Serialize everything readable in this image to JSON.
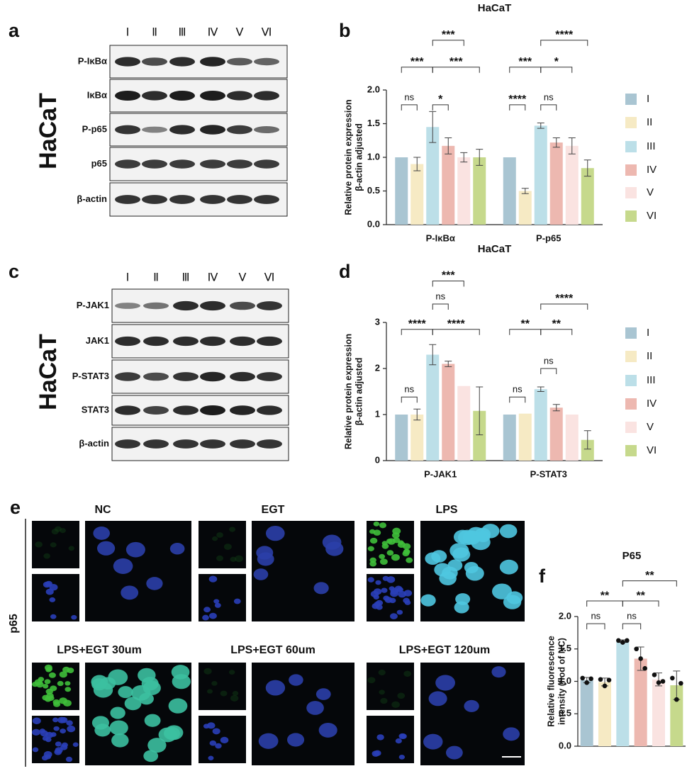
{
  "panel_labels": [
    "a",
    "b",
    "c",
    "d",
    "e",
    "f"
  ],
  "blots": [
    {
      "cell_line": "HaCaT",
      "lanes": [
        "Ⅰ",
        "Ⅱ",
        "Ⅲ",
        "Ⅳ",
        "Ⅴ",
        "Ⅵ"
      ],
      "rows": [
        "P-IκBα",
        "IκBα",
        "P-p65",
        "p65",
        "β-actin"
      ]
    },
    {
      "cell_line": "HaCaT",
      "lanes": [
        "Ⅰ",
        "Ⅱ",
        "Ⅲ",
        "Ⅳ",
        "Ⅴ",
        "Ⅵ"
      ],
      "rows": [
        "P-JAK1",
        "JAK1",
        "P-STAT3",
        "STAT3",
        "β-actin"
      ]
    }
  ],
  "imaging": {
    "protein": "p65",
    "conditions": [
      "NC",
      "EGT",
      "LPS",
      "LPS+EGT 30um",
      "LPS+EGT 60um",
      "LPS+EGT 120um"
    ]
  },
  "chart_data": [
    {
      "type": "bar",
      "title": "HaCaT",
      "ylabel": [
        "Relative protein expression",
        "β-actin adjusted"
      ],
      "categories": [
        "P-IκBα",
        "P-p65"
      ],
      "ylim": [
        0,
        2
      ],
      "yticks": [
        {
          "value": 0,
          "label": "0.0"
        },
        {
          "value": 0.5,
          "label": "0.5"
        },
        {
          "value": 1,
          "label": "1.0"
        },
        {
          "value": 1.5,
          "label": "1.5"
        },
        {
          "value": 2,
          "label": "2.0"
        }
      ],
      "series": [
        {
          "name": "I",
          "color": "#a9c5d2",
          "values": [
            1.0,
            1.0
          ],
          "errors": [
            null,
            null
          ]
        },
        {
          "name": "II",
          "color": "#f6eac4",
          "values": [
            0.9,
            0.5
          ],
          "errors": [
            0.1,
            0.04
          ]
        },
        {
          "name": "III",
          "color": "#bcdfe8",
          "values": [
            1.45,
            1.47
          ],
          "errors": [
            0.23,
            0.04
          ]
        },
        {
          "name": "IV",
          "color": "#edb8b0",
          "values": [
            1.17,
            1.22
          ],
          "errors": [
            0.12,
            0.07
          ]
        },
        {
          "name": "V",
          "color": "#fae3e1",
          "values": [
            1.0,
            1.17
          ],
          "errors": [
            0.07,
            0.12
          ]
        },
        {
          "name": "VI",
          "color": "#c6d98c",
          "values": [
            1.0,
            0.84
          ],
          "errors": [
            0.12,
            0.12
          ]
        }
      ],
      "annotations": [
        "ns",
        "*",
        "***",
        "***",
        "***",
        "****",
        "ns",
        "***",
        "*",
        "****"
      ]
    },
    {
      "type": "bar",
      "title": "HaCaT",
      "ylabel": [
        "Relative protein expression",
        "β-actin adjusted"
      ],
      "categories": [
        "P-JAK1",
        "P-STAT3"
      ],
      "ylim": [
        0,
        3
      ],
      "yticks": [
        0,
        1,
        2,
        3
      ],
      "series": [
        {
          "name": "I",
          "color": "#a9c5d2",
          "values": [
            1.0,
            1.0
          ],
          "errors": [
            null,
            null
          ]
        },
        {
          "name": "II",
          "color": "#f6eac4",
          "values": [
            1.0,
            1.02
          ],
          "errors": [
            0.12,
            null
          ]
        },
        {
          "name": "III",
          "color": "#bcdfe8",
          "values": [
            2.3,
            1.55
          ],
          "errors": [
            0.22,
            0.05
          ]
        },
        {
          "name": "IV",
          "color": "#edb8b0",
          "values": [
            2.1,
            1.15
          ],
          "errors": [
            0.06,
            0.07
          ]
        },
        {
          "name": "V",
          "color": "#fae3e1",
          "values": [
            1.62,
            1.0
          ],
          "errors": [
            null,
            null
          ]
        },
        {
          "name": "VI",
          "color": "#c6d98c",
          "values": [
            1.08,
            0.45
          ],
          "errors": [
            0.52,
            0.2
          ]
        }
      ],
      "annotations": [
        "ns",
        "****",
        "****",
        "ns",
        "***",
        "ns",
        "ns",
        "**",
        "**",
        "****"
      ]
    },
    {
      "type": "dotbar",
      "title": "P65",
      "ylabel": [
        "Relative fluorescence",
        "intensity (flod of NC)"
      ],
      "categories": [
        null,
        null,
        null,
        null,
        null,
        null
      ],
      "ylim": [
        0,
        2
      ],
      "yticks": [
        {
          "value": 0,
          "label": "0.0"
        },
        {
          "value": 0.5,
          "label": "0.5"
        },
        {
          "value": 1,
          "label": "1.0"
        },
        {
          "value": 1.5,
          "label": "1.5"
        },
        {
          "value": 2,
          "label": "2.0"
        }
      ],
      "values": [
        1.02,
        0.99,
        1.62,
        1.35,
        1.03,
        0.94
      ],
      "errors": [
        0.04,
        0.06,
        0.02,
        0.18,
        0.1,
        0.22
      ],
      "colors": [
        "#a9c5d2",
        "#f6eac4",
        "#bcdfe8",
        "#edb8b0",
        "#fae3e1",
        "#c6d98c"
      ],
      "points": [
        [
          1.05,
          0.98,
          1.04
        ],
        [
          1.03,
          0.93,
          1.02
        ],
        [
          1.63,
          1.6,
          1.63
        ],
        [
          1.5,
          1.35,
          1.2
        ],
        [
          1.1,
          0.98,
          1.0
        ],
        [
          1.05,
          0.72,
          0.97
        ]
      ],
      "annotations": [
        "ns",
        "ns",
        "**",
        "**",
        "**"
      ]
    }
  ]
}
